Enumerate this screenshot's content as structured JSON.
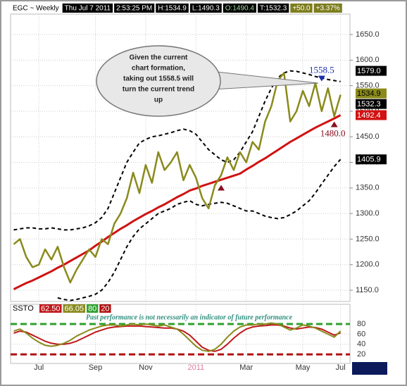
{
  "chart_data": [
    {
      "type": "line",
      "header": [
        {
          "text": "EGC ~ Weekly",
          "bg": "#ffffff",
          "fg": "#000000"
        },
        {
          "text": "Thu Jul 7 2011",
          "bg": "#000000",
          "fg": "#ffffff"
        },
        {
          "text": "2:53:25 PM",
          "bg": "#000000",
          "fg": "#ffffff"
        },
        {
          "text": "H:1534.9",
          "bg": "#000000",
          "fg": "#ffffff"
        },
        {
          "text": "L:1490.3",
          "bg": "#000000",
          "fg": "#ffffff"
        },
        {
          "text": "O:1490.4",
          "bg": "#000000",
          "fg": "#9fd89f"
        },
        {
          "text": "T:1532.3",
          "bg": "#000000",
          "fg": "#ffffff"
        },
        {
          "text": "+50.0",
          "bg": "#7d7d1e",
          "fg": "#ffffff"
        },
        {
          "text": "+3.37%",
          "bg": "#7d7d1e",
          "fg": "#ffffff"
        }
      ],
      "categories": [
        null,
        null,
        null,
        null,
        "Jul",
        null,
        null,
        null,
        null,
        null,
        null,
        null,
        null,
        "Sep",
        null,
        null,
        null,
        null,
        null,
        null,
        null,
        "Nov",
        null,
        null,
        null,
        null,
        null,
        null,
        null,
        "2011",
        null,
        null,
        null,
        null,
        null,
        null,
        null,
        "Mar",
        null,
        null,
        null,
        null,
        null,
        null,
        null,
        null,
        "May",
        null,
        null,
        null,
        null,
        null,
        "Jul"
      ],
      "series": [
        {
          "color": "#d01212",
          "width": 3,
          "dash": false,
          "values": [
            1152,
            1158,
            1164,
            1169,
            1175,
            1181,
            1187,
            1194,
            1200,
            1207,
            1214,
            1221,
            1228,
            1237,
            1245,
            1254,
            1262,
            1270,
            1277,
            1285,
            1292,
            1299,
            1305,
            1312,
            1318,
            1325,
            1332,
            1338,
            1345,
            1349,
            1354,
            1358,
            1362,
            1366,
            1370,
            1374,
            1378,
            1386,
            1393,
            1401,
            1408,
            1416,
            1424,
            1432,
            1440,
            1447,
            1454,
            1461,
            1468,
            1474,
            1480,
            1486,
            1492.4
          ]
        },
        {
          "color": "#000000",
          "width": 2,
          "dash": true,
          "values": [
            1268,
            1270,
            1272,
            1272,
            1270,
            1270,
            1272,
            1270,
            1268,
            1268,
            1270,
            1272,
            1276,
            1282,
            1292,
            1310,
            1340,
            1370,
            1400,
            1420,
            1438,
            1445,
            1450,
            1452,
            1455,
            1458,
            1462,
            1465,
            1462,
            1455,
            1440,
            1425,
            1415,
            1405,
            1400,
            1405,
            1420,
            1440,
            1460,
            1490,
            1520,
            1545,
            1565,
            1575,
            1579,
            1578,
            1575,
            1572,
            1568,
            1565,
            1562,
            1560,
            1558
          ]
        },
        {
          "color": "#000000",
          "width": 2,
          "dash": true,
          "values": [
            null,
            null,
            null,
            null,
            null,
            null,
            null,
            1135,
            1132,
            1130,
            1132,
            1135,
            1138,
            1142,
            1150,
            1165,
            1185,
            1210,
            1235,
            1255,
            1270,
            1280,
            1290,
            1300,
            1305,
            1310,
            1318,
            1322,
            1325,
            1318,
            1315,
            1318,
            1320,
            1322,
            1320,
            1315,
            1310,
            1305,
            1305,
            1300,
            1295,
            1292,
            1290,
            1292,
            1298,
            1305,
            1315,
            1325,
            1340,
            1358,
            1375,
            1392,
            1405.9
          ]
        },
        {
          "color": "#8a8a1c",
          "width": 2.5,
          "dash": false,
          "values": [
            1240,
            1250,
            1215,
            1195,
            1200,
            1230,
            1210,
            1235,
            1195,
            1165,
            1190,
            1210,
            1230,
            1215,
            1250,
            1240,
            1280,
            1300,
            1330,
            1380,
            1340,
            1395,
            1360,
            1420,
            1385,
            1400,
            1420,
            1365,
            1395,
            1370,
            1330,
            1310,
            1355,
            1375,
            1410,
            1385,
            1420,
            1400,
            1440,
            1425,
            1480,
            1510,
            1560,
            1575,
            1480,
            1500,
            1540,
            1510,
            1555,
            1500,
            1545,
            1490,
            1532.3
          ]
        }
      ],
      "ylim": [
        1128,
        1690
      ],
      "yticks": [
        {
          "value": 1150,
          "label": "1150.0"
        },
        {
          "value": 1200,
          "label": "1200.0"
        },
        {
          "value": 1250,
          "label": "1250.0"
        },
        {
          "value": 1300,
          "label": "1300.0"
        },
        {
          "value": 1350,
          "label": "1350.0"
        },
        {
          "value": 1400,
          "label": "1400.0"
        },
        {
          "value": 1450,
          "label": "1450.0"
        },
        {
          "value": 1500,
          "label": "1500.0"
        },
        {
          "value": 1550,
          "label": "1550.0"
        },
        {
          "value": 1600,
          "label": "1600.0"
        },
        {
          "value": 1650,
          "label": "1650.0"
        }
      ],
      "grid": true,
      "price_markers": [
        {
          "value": 1579,
          "label": "1579.0",
          "bg": "#000000",
          "fg": "#ffffff"
        },
        {
          "value": 1534.9,
          "label": "1534.9",
          "bg": "#8a8a1c",
          "fg": "#000000"
        },
        {
          "value": 1532.3,
          "label": "1532.3",
          "bg": "#000000",
          "fg": "#ffffff"
        },
        {
          "value": 1492.4,
          "label": "1492.4",
          "bg": "#d01212",
          "fg": "#ffffff"
        },
        {
          "value": 1405.9,
          "label": "1405.9",
          "bg": "#000000",
          "fg": "#ffffff"
        }
      ],
      "annotations": [
        {
          "x": 49,
          "y": 1558.5,
          "label": "1558.5",
          "color": "#1a2fa8",
          "dir": "down"
        },
        {
          "x": 51,
          "y": 1480,
          "label": "1480.0",
          "color": "#8a1020",
          "dir": "up"
        },
        {
          "x": 33,
          "y": 1356,
          "color": "#8a1020",
          "dir": "up"
        }
      ],
      "callout": [
        "Given the current",
        "chart formation,",
        "taking out 1558.5 will",
        "turn the current trend",
        "up"
      ]
    },
    {
      "type": "line",
      "title": "SSTO",
      "note": "Past performance is not necessarily an indicator of future performance",
      "series": [
        {
          "color": "#c0181c",
          "legend_label": "62.50",
          "values": [
            62,
            66,
            64,
            58,
            52,
            46,
            42,
            40,
            40,
            42,
            46,
            52,
            58,
            64,
            68,
            72,
            74,
            75,
            76,
            76,
            76,
            75,
            74,
            73,
            72,
            72,
            70,
            66,
            58,
            46,
            34,
            28,
            26,
            30,
            40,
            52,
            62,
            70,
            74,
            76,
            77,
            78,
            78,
            76,
            72,
            70,
            72,
            74,
            73,
            70,
            64,
            58,
            62.5
          ]
        },
        {
          "color": "#8a8a1c",
          "legend_label": "66.05",
          "values": [
            66,
            70,
            62,
            52,
            44,
            38,
            36,
            38,
            42,
            48,
            56,
            62,
            68,
            72,
            76,
            78,
            78,
            76,
            78,
            80,
            78,
            80,
            78,
            76,
            78,
            74,
            70,
            60,
            48,
            36,
            28,
            26,
            30,
            40,
            54,
            66,
            74,
            78,
            78,
            80,
            80,
            82,
            80,
            74,
            68,
            72,
            78,
            76,
            72,
            66,
            60,
            54,
            66.05
          ]
        }
      ],
      "levels": [
        {
          "value": 80,
          "color": "#2fa02f"
        },
        {
          "value": 20,
          "color": "#b01010"
        }
      ],
      "ylim": [
        2,
        119
      ],
      "yticks": [
        20,
        40,
        60,
        80
      ]
    }
  ]
}
